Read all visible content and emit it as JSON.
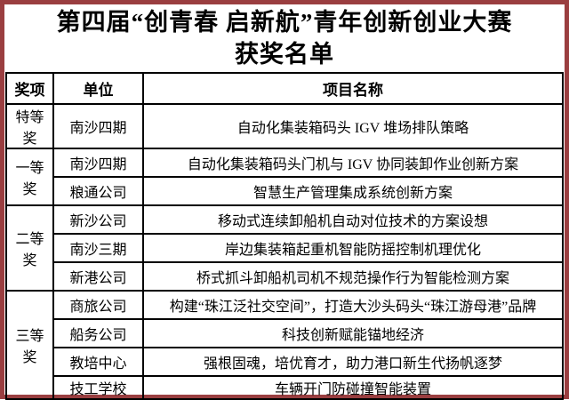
{
  "page": {
    "title_line1": "第四届“创青春 启新航”青年创新创业大赛",
    "title_line2": "获奖名单"
  },
  "table": {
    "headers": [
      "奖项",
      "单位",
      "项目名称"
    ],
    "groups": [
      {
        "award": "特等奖",
        "rows": [
          {
            "unit": "南沙四期",
            "project": "自动化集装箱码头 IGV 堆场排队策略"
          }
        ]
      },
      {
        "award": "一等奖",
        "rows": [
          {
            "unit": "南沙四期",
            "project": "自动化集装箱码头门机与 IGV 协同装卸作业创新方案"
          },
          {
            "unit": "粮通公司",
            "project": "智慧生产管理集成系统创新方案"
          }
        ]
      },
      {
        "award": "二等奖",
        "rows": [
          {
            "unit": "新沙公司",
            "project": "移动式连续卸船机自动对位技术的方案设想"
          },
          {
            "unit": "南沙三期",
            "project": "岸边集装箱起重机智能防摇控制机理优化"
          },
          {
            "unit": "新港公司",
            "project": "桥式抓斗卸船机司机不规范操作行为智能检测方案"
          }
        ]
      },
      {
        "award": "三等奖",
        "rows": [
          {
            "unit": "商旅公司",
            "project": "构建“珠江泛社交空间”，打造大沙头码头“珠江游母港”品牌"
          },
          {
            "unit": "船务公司",
            "project": "科技创新赋能锚地经济"
          },
          {
            "unit": "教培中心",
            "project": "强根固魂，培优育才，助力港口新生代扬帆逐梦"
          },
          {
            "unit": "技工学校",
            "project": "车辆开门防碰撞智能装置"
          }
        ]
      }
    ]
  },
  "colors": {
    "frame": "#9a3e40",
    "grid": "#000000",
    "text": "#000000",
    "background": "#ffffff"
  }
}
